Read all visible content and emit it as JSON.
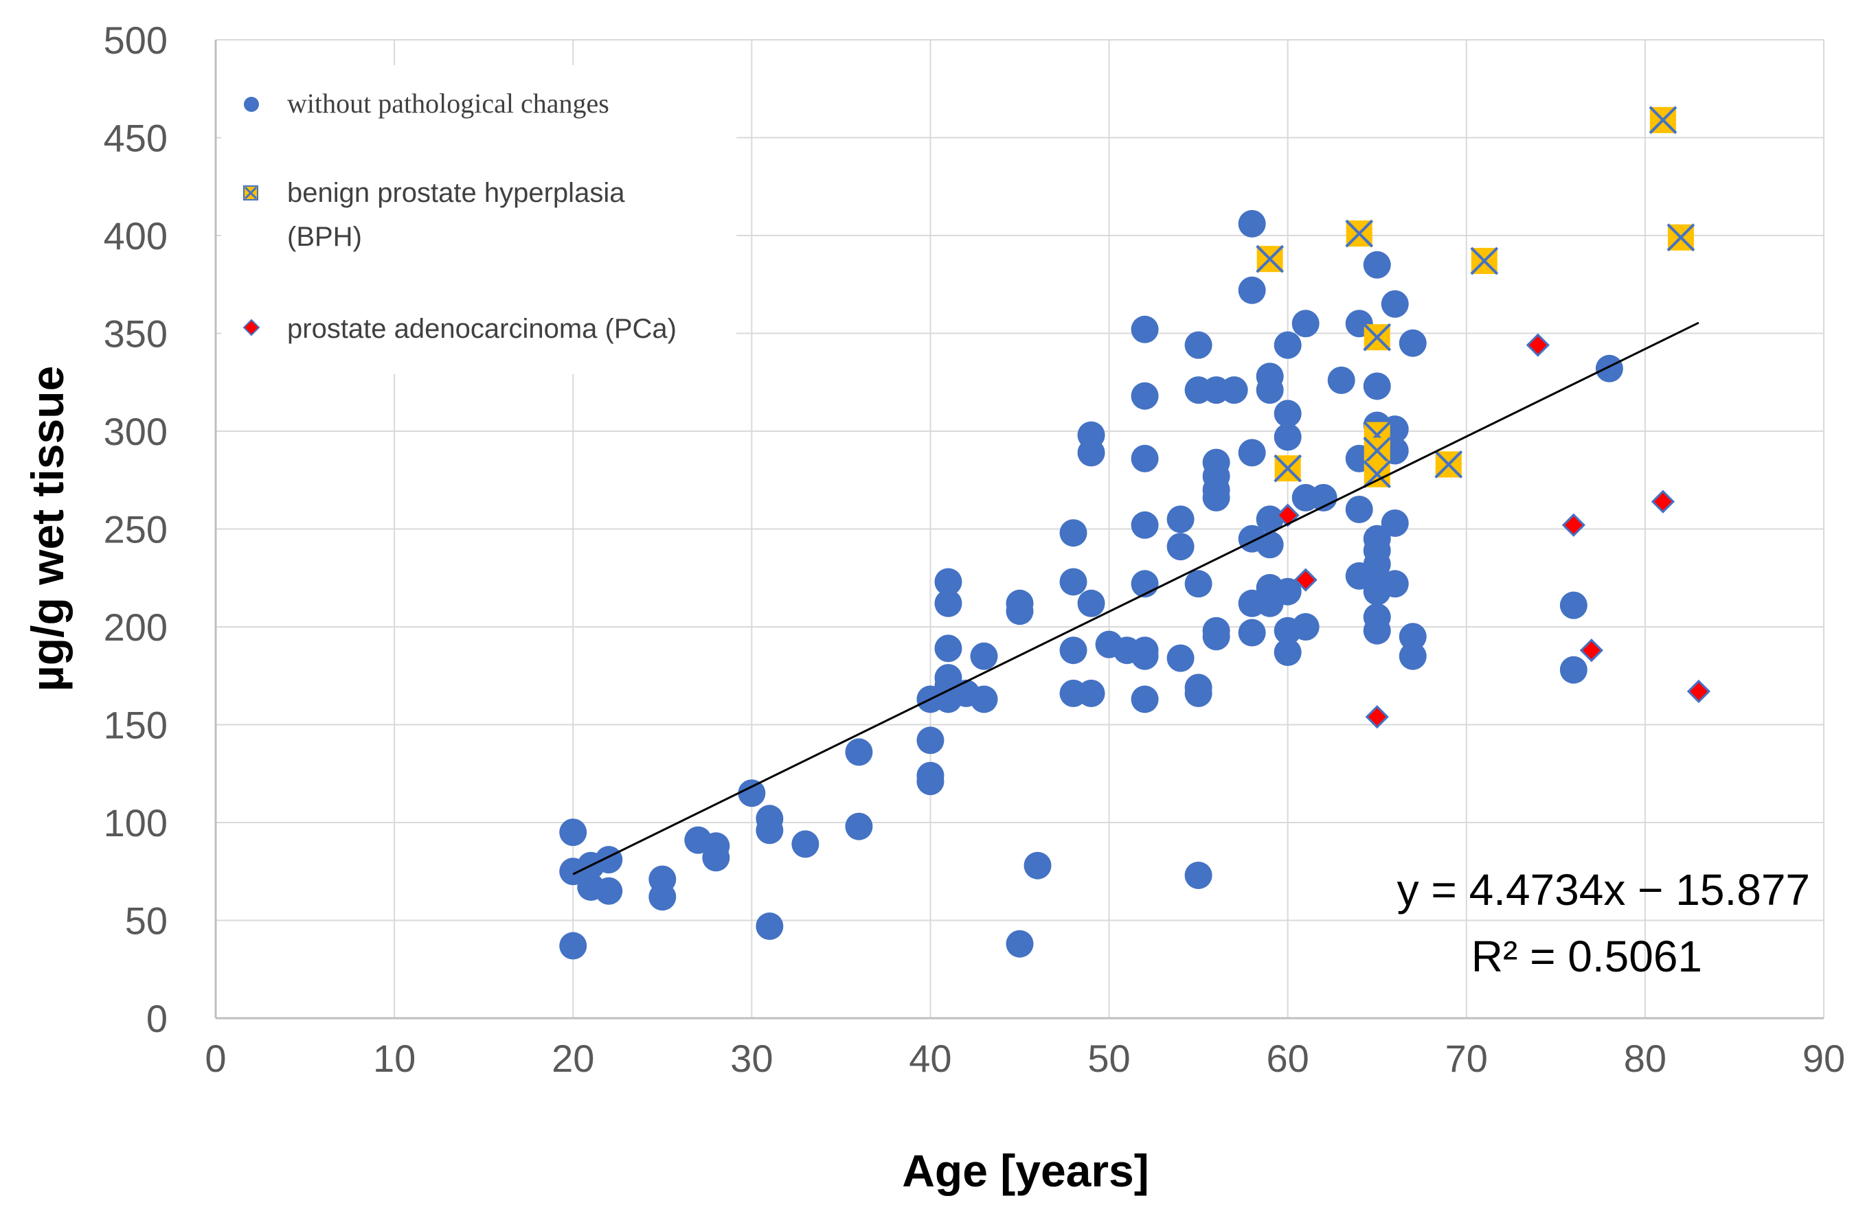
{
  "chart_data": {
    "type": "scatter",
    "xlabel": "Age [years]",
    "ylabel": "µg/g wet tissue",
    "xlim": [
      0,
      90
    ],
    "ylim": [
      0,
      500
    ],
    "x_ticks": [
      "0",
      "10",
      "20",
      "30",
      "40",
      "50",
      "60",
      "70",
      "80",
      "90"
    ],
    "y_ticks": [
      "0",
      "50",
      "100",
      "150",
      "200",
      "250",
      "300",
      "350",
      "400",
      "450",
      "500"
    ],
    "grid": true,
    "legend_position": "top-left",
    "series": [
      {
        "name": "without pathological changes",
        "marker": "circle",
        "color": "#4472C4",
        "points": [
          [
            20,
            95
          ],
          [
            20,
            75
          ],
          [
            20,
            37
          ],
          [
            21,
            78
          ],
          [
            21,
            67
          ],
          [
            22,
            81
          ],
          [
            22,
            65
          ],
          [
            25,
            71
          ],
          [
            25,
            62
          ],
          [
            27,
            91
          ],
          [
            28,
            88
          ],
          [
            28,
            82
          ],
          [
            30,
            115
          ],
          [
            31,
            102
          ],
          [
            31,
            96
          ],
          [
            31,
            47
          ],
          [
            33,
            89
          ],
          [
            36,
            136
          ],
          [
            36,
            98
          ],
          [
            40,
            163
          ],
          [
            40,
            142
          ],
          [
            40,
            124
          ],
          [
            40,
            121
          ],
          [
            41,
            223
          ],
          [
            41,
            212
          ],
          [
            41,
            189
          ],
          [
            41,
            174
          ],
          [
            41,
            170
          ],
          [
            41,
            163
          ],
          [
            42,
            166
          ],
          [
            43,
            185
          ],
          [
            43,
            163
          ],
          [
            45,
            212
          ],
          [
            45,
            208
          ],
          [
            45,
            38
          ],
          [
            46,
            78
          ],
          [
            48,
            248
          ],
          [
            48,
            223
          ],
          [
            48,
            188
          ],
          [
            48,
            166
          ],
          [
            49,
            298
          ],
          [
            49,
            289
          ],
          [
            49,
            212
          ],
          [
            49,
            166
          ],
          [
            50,
            191
          ],
          [
            51,
            188
          ],
          [
            52,
            352
          ],
          [
            52,
            318
          ],
          [
            52,
            286
          ],
          [
            52,
            252
          ],
          [
            52,
            222
          ],
          [
            52,
            188
          ],
          [
            52,
            185
          ],
          [
            52,
            163
          ],
          [
            54,
            255
          ],
          [
            54,
            241
          ],
          [
            54,
            184
          ],
          [
            55,
            344
          ],
          [
            55,
            321
          ],
          [
            55,
            222
          ],
          [
            55,
            169
          ],
          [
            55,
            166
          ],
          [
            55,
            73
          ],
          [
            56,
            321
          ],
          [
            56,
            284
          ],
          [
            56,
            277
          ],
          [
            56,
            270
          ],
          [
            56,
            266
          ],
          [
            56,
            198
          ],
          [
            56,
            195
          ],
          [
            57,
            321
          ],
          [
            58,
            406
          ],
          [
            58,
            372
          ],
          [
            58,
            289
          ],
          [
            58,
            245
          ],
          [
            58,
            212
          ],
          [
            58,
            197
          ],
          [
            59,
            328
          ],
          [
            59,
            321
          ],
          [
            59,
            255
          ],
          [
            59,
            242
          ],
          [
            59,
            220
          ],
          [
            59,
            212
          ],
          [
            60,
            344
          ],
          [
            60,
            309
          ],
          [
            60,
            297
          ],
          [
            60,
            218
          ],
          [
            60,
            198
          ],
          [
            60,
            187
          ],
          [
            61,
            355
          ],
          [
            61,
            266
          ],
          [
            61,
            200
          ],
          [
            62,
            266
          ],
          [
            63,
            326
          ],
          [
            64,
            355
          ],
          [
            64,
            286
          ],
          [
            64,
            260
          ],
          [
            64,
            226
          ],
          [
            65,
            385
          ],
          [
            65,
            323
          ],
          [
            65,
            303
          ],
          [
            65,
            245
          ],
          [
            65,
            239
          ],
          [
            65,
            232
          ],
          [
            65,
            225
          ],
          [
            65,
            218
          ],
          [
            65,
            205
          ],
          [
            65,
            198
          ],
          [
            66,
            365
          ],
          [
            66,
            301
          ],
          [
            66,
            290
          ],
          [
            66,
            253
          ],
          [
            66,
            222
          ],
          [
            67,
            345
          ],
          [
            67,
            195
          ],
          [
            67,
            185
          ],
          [
            76,
            211
          ],
          [
            76,
            178
          ],
          [
            78,
            332
          ]
        ]
      },
      {
        "name": "benign prostate hyperplasia (BPH)",
        "legend_line1": "benign prostate hyperplasia",
        "legend_line2": "(BPH)",
        "marker": "box-x",
        "color": "#FFC000",
        "points": [
          [
            59,
            388
          ],
          [
            60,
            281
          ],
          [
            64,
            401
          ],
          [
            65,
            348
          ],
          [
            65,
            298
          ],
          [
            65,
            290
          ],
          [
            65,
            278
          ],
          [
            69,
            283
          ],
          [
            71,
            387
          ],
          [
            81,
            459
          ],
          [
            82,
            399
          ]
        ]
      },
      {
        "name": "prostate adenocarcinoma (PCa)",
        "marker": "diamond",
        "color": "#FF0000",
        "points": [
          [
            60,
            257
          ],
          [
            61,
            224
          ],
          [
            65,
            154
          ],
          [
            74,
            344
          ],
          [
            76,
            252
          ],
          [
            77,
            188
          ],
          [
            81,
            264
          ],
          [
            83,
            167
          ]
        ]
      }
    ],
    "trendline": {
      "slope": 4.4734,
      "intercept": -15.877,
      "x_range": [
        20,
        83
      ],
      "equation": "y = 4.4734x − 15.877",
      "r_squared": "R² = 0.5061"
    }
  }
}
